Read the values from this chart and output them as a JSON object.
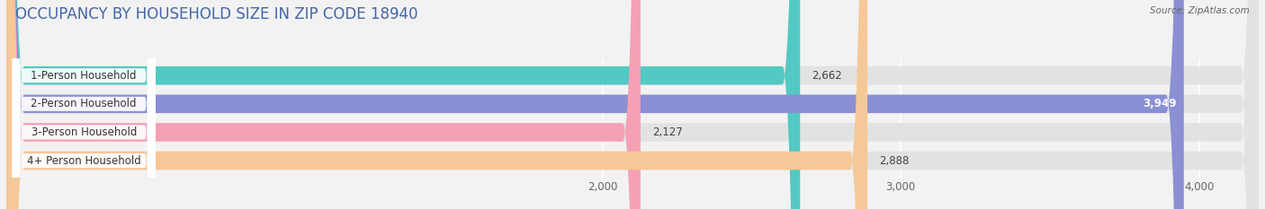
{
  "title": "OCCUPANCY BY HOUSEHOLD SIZE IN ZIP CODE 18940",
  "source": "Source: ZipAtlas.com",
  "categories": [
    "1-Person Household",
    "2-Person Household",
    "3-Person Household",
    "4+ Person Household"
  ],
  "values": [
    2662,
    3949,
    2127,
    2888
  ],
  "bar_colors": [
    "#52C9C3",
    "#8B8FD4",
    "#F4A0B5",
    "#F5C897"
  ],
  "label_values": [
    "2,662",
    "3,949",
    "2,127",
    "2,888"
  ],
  "value_label_inside": [
    false,
    true,
    false,
    false
  ],
  "xlim": [
    0,
    4200
  ],
  "xticks": [
    2000,
    3000,
    4000
  ],
  "xtick_labels": [
    "2,000",
    "3,000",
    "4,000"
  ],
  "background_color": "#f2f2f2",
  "bar_bg_color": "#e2e2e2",
  "title_color": "#4466aa",
  "title_fontsize": 12,
  "bar_height": 0.65,
  "figsize": [
    14.06,
    2.33
  ],
  "dpi": 100
}
